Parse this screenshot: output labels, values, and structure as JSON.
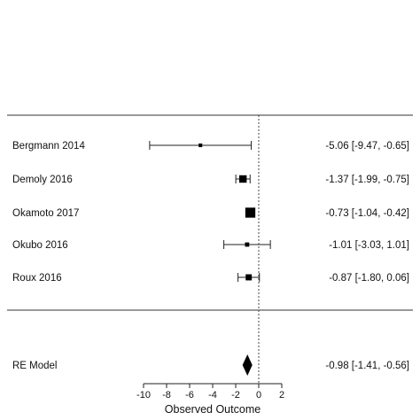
{
  "chart_data": {
    "type": "forest",
    "xlabel": "Observed Outcome",
    "xlim": [
      -10,
      2
    ],
    "xticks": [
      -10,
      -8,
      -6,
      -4,
      -2,
      0,
      2
    ],
    "reference_line": 0,
    "studies": [
      {
        "label": "Bergmann 2014",
        "estimate": -5.06,
        "lower": -9.47,
        "upper": -0.65,
        "ci_text": "-5.06 [-9.47, -0.65]",
        "weight": 0.02
      },
      {
        "label": "Demoly 2016",
        "estimate": -1.37,
        "lower": -1.99,
        "upper": -0.75,
        "ci_text": "-1.37 [-1.99, -0.75]",
        "weight": 0.25
      },
      {
        "label": "Okamoto 2017",
        "estimate": -0.73,
        "lower": -1.04,
        "upper": -0.42,
        "ci_text": "-0.73 [-1.04, -0.42]",
        "weight": 0.55
      },
      {
        "label": "Okubo 2016",
        "estimate": -1.01,
        "lower": -3.03,
        "upper": 1.01,
        "ci_text": "-1.01 [-3.03,  1.01]",
        "weight": 0.04
      },
      {
        "label": "Roux 2016",
        "estimate": -0.87,
        "lower": -1.8,
        "upper": 0.06,
        "ci_text": "-0.87 [-1.80,  0.06]",
        "weight": 0.14
      }
    ],
    "summary": {
      "label": "RE Model",
      "estimate": -0.98,
      "lower": -1.41,
      "upper": -0.56,
      "ci_text": "-0.98 [-1.41, -0.56]"
    }
  }
}
